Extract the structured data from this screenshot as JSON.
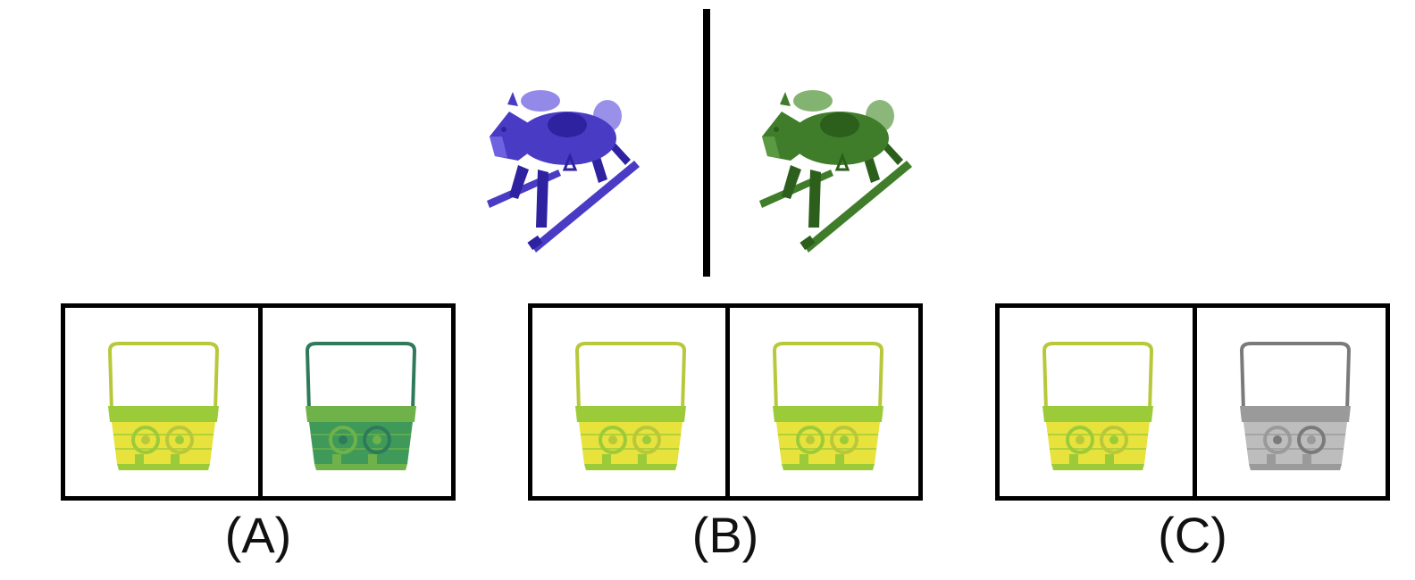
{
  "top": {
    "left_horse": {
      "icon": "rocking-horse-icon",
      "color": "#4a3bc4",
      "color_dark": "#2e22a0",
      "color_light": "#6e62e0"
    },
    "right_horse": {
      "icon": "rocking-horse-icon",
      "color": "#3f7d2a",
      "color_dark": "#2c5e1c",
      "color_light": "#5a9a42"
    }
  },
  "options": [
    {
      "label": "(A)",
      "left": {
        "icon": "basket-icon",
        "color": "#e8e23c",
        "handle": "#b8c83a",
        "accent": "#9ccb3a"
      },
      "right": {
        "icon": "basket-icon",
        "color": "#3f9a5a",
        "handle": "#2e7a5a",
        "accent": "#6fb24a"
      }
    },
    {
      "label": "(B)",
      "left": {
        "icon": "basket-icon",
        "color": "#e8e23c",
        "handle": "#b8c83a",
        "accent": "#9ccb3a"
      },
      "right": {
        "icon": "basket-icon",
        "color": "#e8e23c",
        "handle": "#b8c83a",
        "accent": "#9ccb3a"
      }
    },
    {
      "label": "(C)",
      "left": {
        "icon": "basket-icon",
        "color": "#e8e23c",
        "handle": "#b8c83a",
        "accent": "#9ccb3a"
      },
      "right": {
        "icon": "basket-icon",
        "color": "#bdbdbd",
        "handle": "#7a7a7a",
        "accent": "#9a9a9a"
      }
    }
  ]
}
